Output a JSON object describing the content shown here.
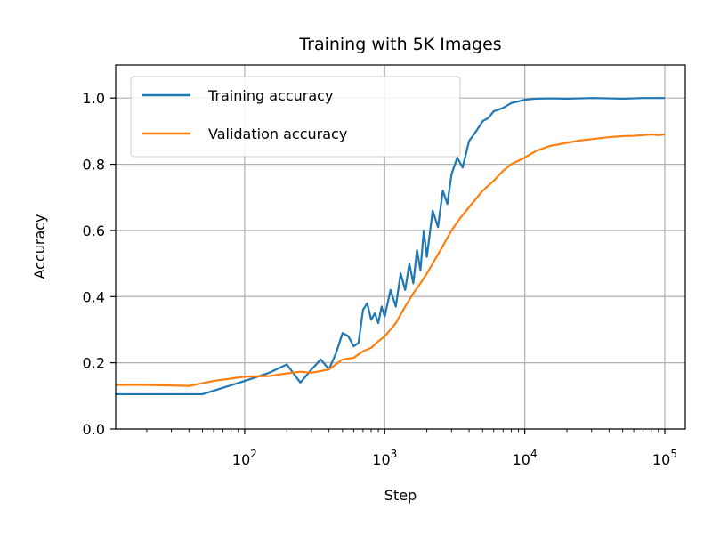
{
  "chart_data": {
    "type": "line",
    "title": "Training with 5K Images",
    "xlabel": "Step",
    "ylabel": "Accuracy",
    "xscale": "log",
    "xlim": [
      12,
      140000
    ],
    "ylim": [
      0.0,
      1.1
    ],
    "xticks": [
      {
        "value": 100,
        "base": "10",
        "exp": "2"
      },
      {
        "value": 1000,
        "base": "10",
        "exp": "3"
      },
      {
        "value": 10000,
        "base": "10",
        "exp": "4"
      },
      {
        "value": 100000,
        "base": "10",
        "exp": "5"
      }
    ],
    "yticks": [
      {
        "value": 0.0,
        "label": "0.0"
      },
      {
        "value": 0.2,
        "label": "0.2"
      },
      {
        "value": 0.4,
        "label": "0.4"
      },
      {
        "value": 0.6,
        "label": "0.6"
      },
      {
        "value": 0.8,
        "label": "0.8"
      },
      {
        "value": 1.0,
        "label": "1.0"
      }
    ],
    "grid": true,
    "legend_position": "top-left",
    "series": [
      {
        "name": "Training accuracy",
        "color": "#1f77b4",
        "x": [
          10,
          50,
          100,
          150,
          200,
          250,
          300,
          350,
          400,
          450,
          500,
          550,
          600,
          650,
          700,
          750,
          800,
          850,
          900,
          950,
          1000,
          1100,
          1200,
          1300,
          1400,
          1500,
          1600,
          1700,
          1800,
          1900,
          2000,
          2200,
          2400,
          2600,
          2800,
          3000,
          3300,
          3600,
          4000,
          4500,
          5000,
          5500,
          6000,
          7000,
          8000,
          9000,
          10000,
          12000,
          15000,
          20000,
          30000,
          40000,
          50000,
          70000,
          100000
        ],
        "y": [
          0.105,
          0.105,
          0.145,
          0.17,
          0.195,
          0.14,
          0.18,
          0.21,
          0.18,
          0.23,
          0.29,
          0.28,
          0.25,
          0.26,
          0.36,
          0.38,
          0.33,
          0.35,
          0.32,
          0.37,
          0.34,
          0.42,
          0.37,
          0.47,
          0.42,
          0.5,
          0.44,
          0.54,
          0.48,
          0.6,
          0.52,
          0.66,
          0.61,
          0.72,
          0.68,
          0.77,
          0.82,
          0.79,
          0.87,
          0.9,
          0.93,
          0.94,
          0.96,
          0.97,
          0.985,
          0.99,
          0.995,
          0.998,
          0.999,
          0.998,
          1.0,
          0.999,
          0.998,
          1.0,
          1.0
        ]
      },
      {
        "name": "Validation accuracy",
        "color": "#ff7f0e",
        "x": [
          10,
          20,
          40,
          60,
          100,
          150,
          200,
          250,
          300,
          350,
          400,
          500,
          600,
          700,
          800,
          900,
          1000,
          1200,
          1400,
          1600,
          1800,
          2000,
          2500,
          3000,
          3500,
          4000,
          5000,
          6000,
          7000,
          8000,
          10000,
          12000,
          15000,
          20000,
          25000,
          30000,
          40000,
          50000,
          60000,
          70000,
          80000,
          90000,
          100000
        ],
        "y": [
          0.133,
          0.133,
          0.13,
          0.145,
          0.158,
          0.16,
          0.168,
          0.173,
          0.17,
          0.175,
          0.18,
          0.21,
          0.215,
          0.235,
          0.245,
          0.265,
          0.28,
          0.32,
          0.37,
          0.41,
          0.44,
          0.47,
          0.54,
          0.6,
          0.64,
          0.67,
          0.72,
          0.75,
          0.78,
          0.8,
          0.82,
          0.84,
          0.855,
          0.865,
          0.872,
          0.876,
          0.882,
          0.885,
          0.886,
          0.888,
          0.89,
          0.888,
          0.89
        ]
      }
    ]
  }
}
